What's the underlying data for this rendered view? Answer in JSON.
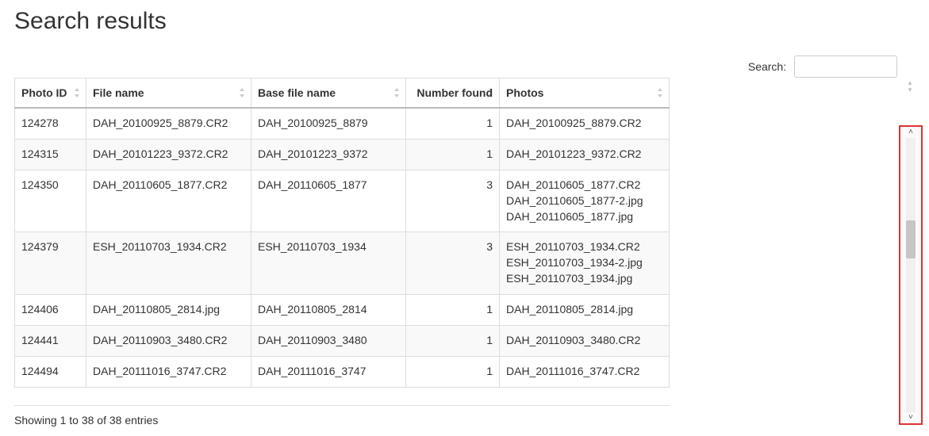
{
  "title": "Search results",
  "search": {
    "label": "Search:",
    "placeholder": "",
    "value": ""
  },
  "table": {
    "col_widths": [
      "90px",
      "208px",
      "195px",
      "118px",
      "auto"
    ],
    "columns": [
      {
        "label": "Photo ID",
        "align": "left"
      },
      {
        "label": "File name",
        "align": "left"
      },
      {
        "label": "Base file name",
        "align": "left"
      },
      {
        "label": "Number found",
        "align": "right"
      },
      {
        "label": "Photos",
        "align": "left"
      }
    ],
    "rows": [
      {
        "photo_id": "124278",
        "file_name": "DAH_20100925_8879.CR2",
        "base_name": "DAH_20100925_8879",
        "count": "1",
        "photos": "DAH_20100925_8879.CR2"
      },
      {
        "photo_id": "124315",
        "file_name": "DAH_20101223_9372.CR2",
        "base_name": "DAH_20101223_9372",
        "count": "1",
        "photos": "DAH_20101223_9372.CR2"
      },
      {
        "photo_id": "124350",
        "file_name": "DAH_20110605_1877.CR2",
        "base_name": "DAH_20110605_1877",
        "count": "3",
        "photos": "DAH_20110605_1877.CR2\nDAH_20110605_1877-2.jpg\nDAH_20110605_1877.jpg"
      },
      {
        "photo_id": "124379",
        "file_name": "ESH_20110703_1934.CR2",
        "base_name": "ESH_20110703_1934",
        "count": "3",
        "photos": "ESH_20110703_1934.CR2\nESH_20110703_1934-2.jpg\nESH_20110703_1934.jpg"
      },
      {
        "photo_id": "124406",
        "file_name": "DAH_20110805_2814.jpg",
        "base_name": "DAH_20110805_2814",
        "count": "1",
        "photos": "DAH_20110805_2814.jpg"
      },
      {
        "photo_id": "124441",
        "file_name": "DAH_20110903_3480.CR2",
        "base_name": "DAH_20110903_3480",
        "count": "1",
        "photos": "DAH_20110903_3480.CR2"
      },
      {
        "photo_id": "124494",
        "file_name": "DAH_20111016_3747.CR2",
        "base_name": "DAH_20111016_3747",
        "count": "1",
        "photos": "DAH_20111016_3747.CR2"
      }
    ]
  },
  "info": "Showing 1 to 38 of 38 entries",
  "colors": {
    "border": "#ddd",
    "header_underline": "#bbb",
    "row_alt": "#f9f9f9",
    "highlight_border": "#d33",
    "scroll_thumb": "#c6c6c6",
    "text": "#333333"
  }
}
